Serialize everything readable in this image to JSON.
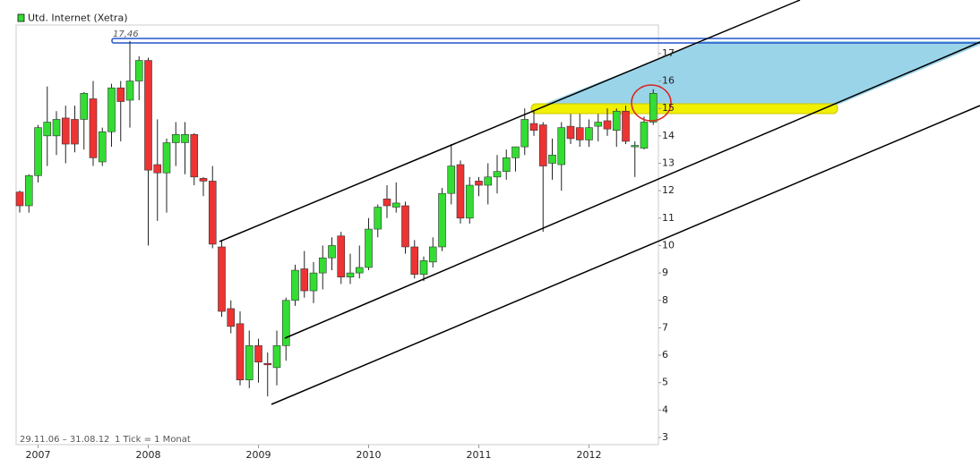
{
  "chart_data": {
    "type": "candlestick",
    "title": "Utd. Internet (Xetra)",
    "annotations": [
      "17,46",
      "29.11.06 – 31.08.12",
      "1 Tick = 1 Monat"
    ],
    "categories": [
      null,
      null,
      "2007",
      null,
      null,
      null,
      null,
      null,
      null,
      null,
      null,
      null,
      null,
      null,
      "2008",
      null,
      null,
      null,
      null,
      null,
      null,
      null,
      null,
      null,
      null,
      null,
      "2009",
      null,
      null,
      null,
      null,
      null,
      null,
      null,
      null,
      null,
      null,
      null,
      "2010",
      null,
      null,
      null,
      null,
      null,
      null,
      null,
      null,
      null,
      null,
      null,
      "2011",
      null,
      null,
      null,
      null,
      null,
      null,
      null,
      null,
      null,
      null,
      null,
      "2012",
      null,
      null,
      null,
      null,
      null,
      null,
      null
    ],
    "open": [
      11.95,
      11.45,
      12.55,
      14.0,
      14.0,
      14.65,
      14.6,
      14.6,
      15.35,
      13.05,
      14.15,
      15.75,
      15.3,
      16.0,
      16.75,
      12.95,
      12.65,
      13.75,
      13.75,
      14.05,
      12.45,
      12.35,
      9.95,
      7.7,
      7.15,
      5.1,
      6.35,
      5.7,
      5.55,
      6.35,
      8.0,
      9.15,
      8.35,
      9.0,
      9.55,
      10.35,
      8.85,
      9.0,
      9.2,
      10.6,
      11.7,
      11.4,
      11.45,
      9.95,
      8.95,
      9.4,
      9.95,
      11.9,
      12.95,
      11.0,
      12.35,
      12.2,
      12.5,
      12.7,
      13.2,
      13.6,
      14.45,
      14.4,
      13.0,
      12.95,
      14.35,
      14.3,
      13.85,
      14.35,
      14.55,
      14.2,
      14.9,
      13.6,
      13.55,
      14.5
    ],
    "high": [
      12.0,
      12.6,
      14.4,
      15.8,
      14.9,
      15.1,
      15.1,
      15.6,
      16.0,
      14.3,
      15.9,
      16.0,
      17.46,
      16.9,
      16.85,
      14.6,
      13.9,
      14.5,
      14.5,
      14.1,
      12.5,
      12.9,
      10.2,
      8.0,
      7.6,
      6.9,
      6.6,
      6.1,
      6.9,
      8.1,
      9.3,
      9.8,
      9.4,
      10.0,
      10.3,
      10.5,
      9.7,
      10.0,
      11.0,
      11.5,
      12.2,
      12.3,
      11.6,
      10.2,
      9.6,
      10.3,
      12.1,
      13.7,
      13.1,
      12.5,
      12.5,
      13.0,
      13.3,
      13.5,
      13.6,
      15.0,
      14.9,
      14.5,
      13.9,
      14.5,
      14.8,
      14.8,
      14.6,
      14.8,
      15.0,
      15.0,
      15.1,
      13.8,
      14.7,
      15.7
    ],
    "low": [
      11.2,
      11.2,
      12.3,
      12.9,
      13.3,
      13.0,
      13.4,
      13.5,
      12.9,
      12.9,
      13.6,
      13.8,
      14.3,
      15.3,
      10.0,
      10.9,
      11.2,
      12.9,
      12.6,
      12.2,
      11.8,
      9.9,
      7.4,
      6.8,
      4.9,
      4.8,
      5.0,
      4.5,
      4.9,
      5.8,
      7.8,
      8.1,
      7.9,
      8.4,
      9.1,
      8.6,
      8.6,
      8.8,
      9.1,
      10.3,
      11.0,
      11.2,
      9.7,
      8.8,
      8.7,
      9.2,
      9.8,
      11.5,
      10.8,
      10.8,
      11.8,
      11.5,
      11.9,
      12.4,
      12.7,
      13.3,
      14.0,
      10.5,
      12.4,
      12.0,
      13.7,
      13.6,
      13.6,
      13.8,
      14.0,
      13.6,
      13.7,
      12.5,
      13.5,
      14.4
    ],
    "close": [
      11.45,
      12.55,
      14.3,
      14.5,
      14.6,
      13.7,
      13.7,
      15.55,
      13.2,
      14.15,
      15.75,
      15.25,
      16.0,
      16.75,
      12.75,
      12.65,
      13.75,
      14.05,
      14.05,
      12.5,
      12.35,
      10.05,
      7.6,
      7.05,
      5.1,
      6.35,
      5.75,
      5.65,
      6.35,
      8.0,
      9.1,
      8.35,
      9.0,
      9.55,
      10.0,
      8.85,
      9.0,
      9.2,
      10.6,
      11.4,
      11.45,
      11.55,
      9.95,
      8.95,
      9.45,
      9.95,
      11.9,
      12.9,
      11.0,
      12.2,
      12.2,
      12.5,
      12.7,
      13.2,
      13.6,
      14.6,
      14.2,
      12.9,
      13.3,
      14.3,
      13.9,
      13.85,
      14.3,
      14.5,
      14.25,
      14.9,
      13.8,
      13.65,
      14.5,
      15.55
    ],
    "up_color": "#33dd33",
    "down_color": "#ee3333",
    "ylim": [
      2.74,
      18.04
    ],
    "yticks": [
      3,
      4,
      5,
      6,
      7,
      8,
      9,
      10,
      11,
      12,
      13,
      14,
      15,
      16,
      17
    ]
  }
}
